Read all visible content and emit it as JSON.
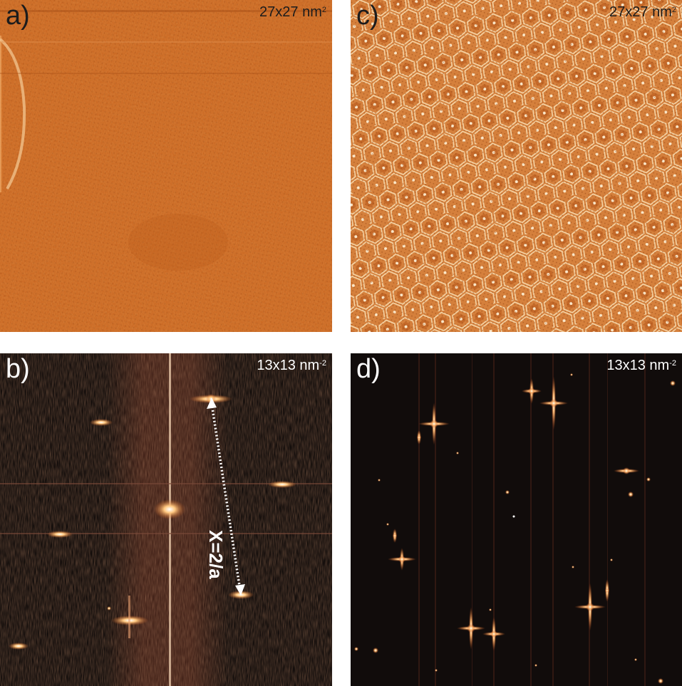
{
  "panels": {
    "a": {
      "letter": "a)",
      "scale_base": "27x27 nm",
      "scale_exp": "2"
    },
    "b": {
      "letter": "b)",
      "scale_base": "13x13 nm",
      "scale_exp": "-2",
      "annotation": "X=2/a"
    },
    "c": {
      "letter": "c)",
      "scale_base": "27x27 nm",
      "scale_exp": "2"
    },
    "d": {
      "letter": "d)",
      "scale_base": "13x13 nm",
      "scale_exp": "-2"
    }
  },
  "colors": {
    "stm_orange": "#c9641e",
    "stm_light": "#e8a565",
    "fft_background": "#120d0b",
    "fft_spot": "#ffd9a0"
  }
}
